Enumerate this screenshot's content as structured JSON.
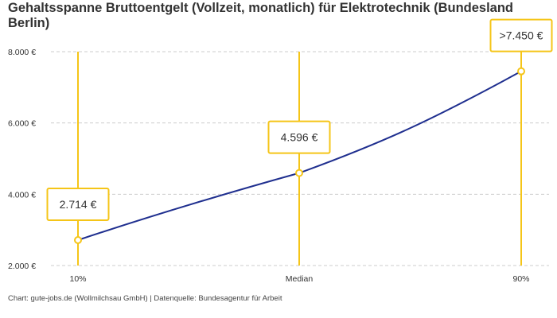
{
  "chart_data": {
    "type": "line",
    "title": "Gehaltsspanne Bruttoentgelt (Vollzeit, monatlich) für Elektrotechnik (Bundesland Berlin)",
    "categories": [
      "10%",
      "Median",
      "90%"
    ],
    "values": [
      2714,
      4596,
      7450
    ],
    "data_labels": [
      "2.714 €",
      "4.596 €",
      ">7.450 €"
    ],
    "yticks": [
      2000,
      4000,
      6000,
      8000
    ],
    "ytick_labels": [
      "2.000 €",
      "4.000 €",
      "6.000 €",
      "8.000 €"
    ],
    "ylim": [
      2000,
      8000
    ],
    "grid": "horizontal dashed",
    "colors": {
      "line": "#1f2f8f",
      "accent": "#f5c518",
      "grid": "#cccccc"
    }
  },
  "footer": "Chart: gute-jobs.de (Wollmilchsau GmbH) | Datenquelle: Bundesagentur für Arbeit"
}
